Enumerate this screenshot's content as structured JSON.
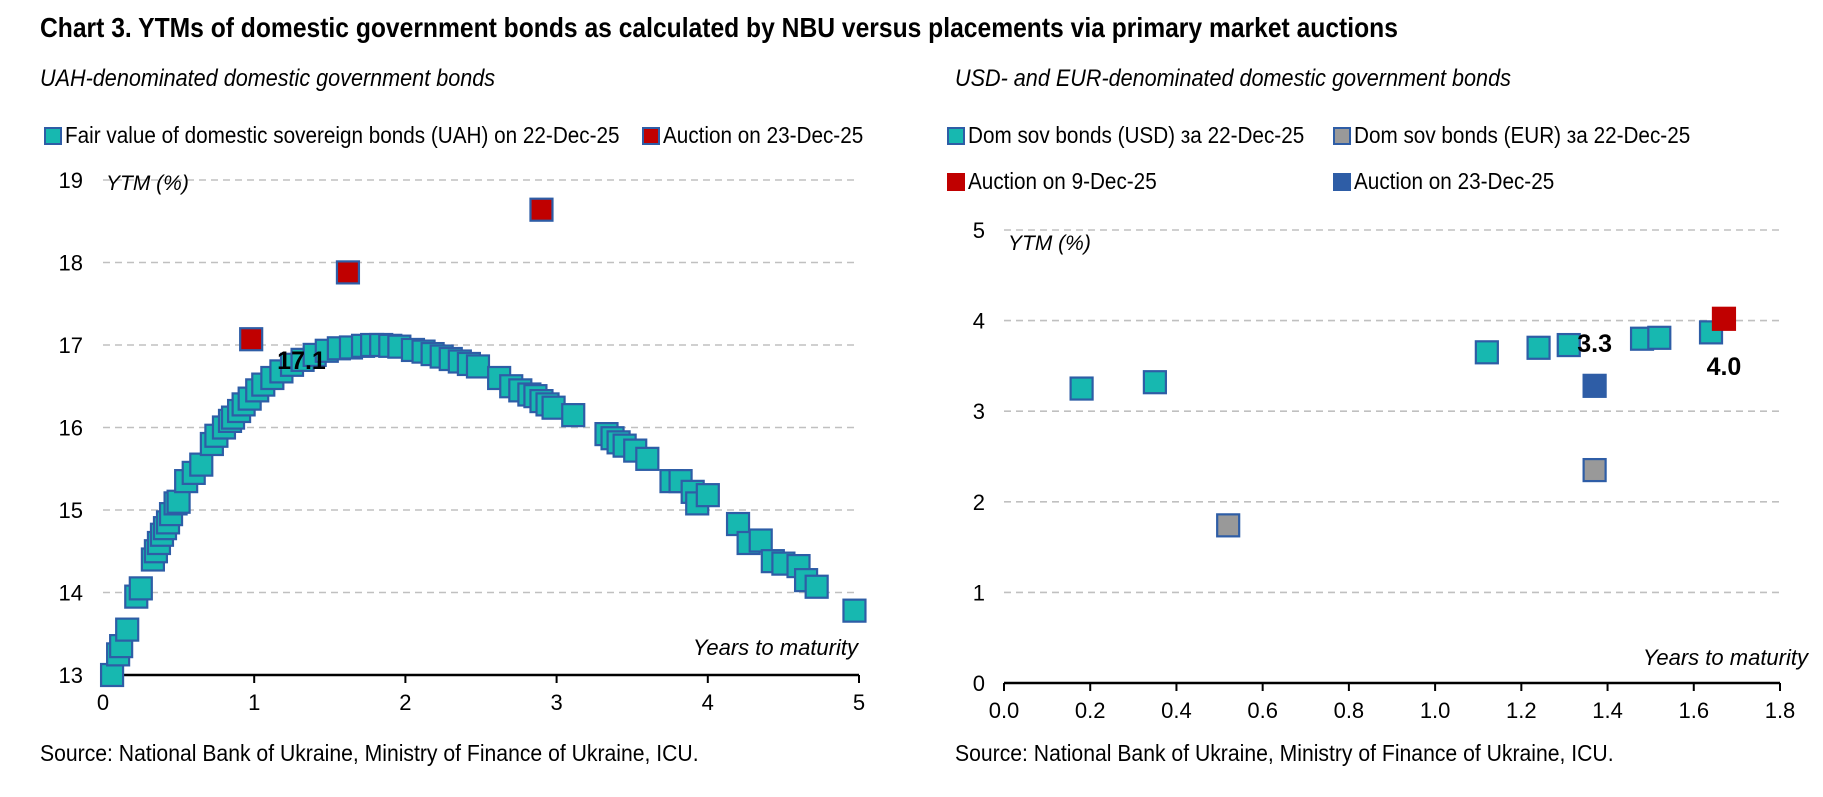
{
  "title": "Chart 3. YTMs of domestic government bonds as calculated by NBU versus placements via primary market auctions",
  "colors": {
    "teal": "#17B8B0",
    "border": "#2E5DA6",
    "red": "#C00000",
    "blue": "#2E5DA6",
    "gray": "#999999",
    "grid": "#C0C0C0"
  },
  "left": {
    "subtitle": "UAH-denominated domestic government bonds",
    "legend": [
      {
        "label": "Fair value of domestic sovereign bonds (UAH) on 22-Dec-25",
        "color": "#17B8B0"
      },
      {
        "label": "Auction on 23-Dec-25",
        "color": "#C00000"
      }
    ],
    "source": "Source: National Bank of Ukraine, Ministry of Finance of Ukraine, ICU.",
    "chart_data": {
      "type": "scatter",
      "title": "UAH-denominated domestic government bonds",
      "xlabel": "Years to maturity",
      "ylabel": "YTM (%)",
      "xlim": [
        0,
        5
      ],
      "ylim": [
        13,
        19
      ],
      "xticks": [
        "0",
        "1",
        "2",
        "3",
        "4",
        "5"
      ],
      "yticks": [
        "13",
        "14",
        "15",
        "16",
        "17",
        "18",
        "19"
      ],
      "grid": true,
      "series": [
        {
          "name": "Fair value of domestic sovereign bonds (UAH) on 22-Dec-25",
          "color": "#17B8B0",
          "x": [
            0.06,
            0.1,
            0.12,
            0.16,
            0.22,
            0.25,
            0.33,
            0.35,
            0.37,
            0.39,
            0.41,
            0.43,
            0.45,
            0.48,
            0.5,
            0.55,
            0.6,
            0.65,
            0.72,
            0.75,
            0.8,
            0.84,
            0.86,
            0.9,
            0.93,
            0.97,
            1.02,
            1.06,
            1.12,
            1.18,
            1.25,
            1.32,
            1.4,
            1.48,
            1.56,
            1.64,
            1.72,
            1.78,
            1.84,
            1.9,
            1.96,
            2.05,
            2.12,
            2.18,
            2.24,
            2.3,
            2.36,
            2.42,
            2.48,
            2.62,
            2.7,
            2.76,
            2.82,
            2.86,
            2.9,
            2.94,
            2.98,
            3.11,
            3.33,
            3.37,
            3.41,
            3.45,
            3.52,
            3.6,
            3.76,
            3.82,
            3.9,
            3.93,
            4.0,
            4.2,
            4.27,
            4.35,
            4.43,
            4.5,
            4.6,
            4.65,
            4.72,
            4.97
          ],
          "y": [
            13.0,
            13.25,
            13.35,
            13.55,
            13.95,
            14.05,
            14.4,
            14.5,
            14.6,
            14.7,
            14.78,
            14.85,
            14.95,
            15.08,
            15.1,
            15.35,
            15.45,
            15.55,
            15.8,
            15.9,
            16.0,
            16.08,
            16.12,
            16.2,
            16.28,
            16.35,
            16.45,
            16.52,
            16.6,
            16.68,
            16.76,
            16.82,
            16.88,
            16.93,
            16.96,
            16.97,
            16.99,
            17.0,
            17.0,
            16.99,
            16.98,
            16.94,
            16.92,
            16.89,
            16.86,
            16.83,
            16.8,
            16.77,
            16.74,
            16.6,
            16.5,
            16.45,
            16.4,
            16.38,
            16.32,
            16.28,
            16.24,
            16.15,
            15.92,
            15.87,
            15.82,
            15.78,
            15.72,
            15.62,
            15.35,
            15.35,
            15.22,
            15.08,
            15.18,
            14.83,
            14.6,
            14.63,
            14.38,
            14.35,
            14.32,
            14.15,
            14.07,
            13.78
          ]
        },
        {
          "name": "Auction on 23-Dec-25",
          "color": "#C00000",
          "x": [
            0.98,
            1.62,
            2.9
          ],
          "y": [
            17.07,
            17.88,
            18.64
          ]
        }
      ],
      "annotations": [
        {
          "text": "17.1",
          "x": 0.98,
          "y": 17.07
        }
      ]
    }
  },
  "right": {
    "subtitle": "USD- and EUR-denominated domestic government bonds",
    "legend": [
      {
        "label": "Dom sov bonds (USD) за 22-Dec-25",
        "color": "#17B8B0"
      },
      {
        "label": "Dom sov bonds (EUR) за 22-Dec-25",
        "color": "#999999"
      },
      {
        "label": "Auction on 9-Dec-25",
        "color": "#C00000"
      },
      {
        "label": "Auction on 23-Dec-25",
        "color": "#2E5DA6"
      }
    ],
    "source": "Source: National Bank of Ukraine, Ministry of Finance of Ukraine, ICU.",
    "chart_data": {
      "type": "scatter",
      "title": "USD- and EUR-denominated domestic government bonds",
      "xlabel": "Years to maturity",
      "ylabel": "YTM (%)",
      "xlim": [
        0,
        1.8
      ],
      "ylim": [
        0,
        5
      ],
      "xticks": [
        "0.0",
        "0.2",
        "0.4",
        "0.6",
        "0.8",
        "1.0",
        "1.2",
        "1.4",
        "1.6",
        "1.8"
      ],
      "yticks": [
        "0",
        "1",
        "2",
        "3",
        "4",
        "5"
      ],
      "grid": true,
      "series": [
        {
          "name": "Dom sov bonds (USD) за 22-Dec-25",
          "color": "#17B8B0",
          "x": [
            0.18,
            0.35,
            1.12,
            1.24,
            1.31,
            1.48,
            1.52,
            1.64
          ],
          "y": [
            3.25,
            3.32,
            3.65,
            3.7,
            3.73,
            3.8,
            3.81,
            3.87
          ]
        },
        {
          "name": "Dom sov bonds (EUR) за 22-Dec-25",
          "color": "#999999",
          "x": [
            0.52,
            1.37
          ],
          "y": [
            1.74,
            2.35
          ]
        },
        {
          "name": "Auction on 9-Dec-25",
          "color": "#C00000",
          "x": [
            1.67
          ],
          "y": [
            4.02
          ]
        },
        {
          "name": "Auction on 23-Dec-25",
          "color": "#2E5DA6",
          "x": [
            1.37
          ],
          "y": [
            3.28
          ]
        }
      ],
      "annotations": [
        {
          "text": "3.3",
          "x": 1.37,
          "y": 3.28
        },
        {
          "text": "4.0",
          "x": 1.67,
          "y": 4.02
        }
      ]
    }
  }
}
